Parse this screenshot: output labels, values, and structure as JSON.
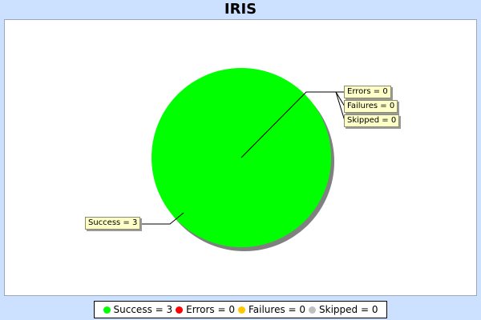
{
  "chart_data": {
    "type": "pie",
    "title": "IRIS",
    "slices": [
      {
        "label": "Success",
        "value": 3,
        "color": "#00ff00"
      },
      {
        "label": "Errors",
        "value": 0,
        "color": "#ff0000"
      },
      {
        "label": "Failures",
        "value": 0,
        "color": "#ffc800"
      },
      {
        "label": "Skipped",
        "value": 0,
        "color": "#c0c0c0"
      }
    ],
    "labels": {
      "success": "Success = 3",
      "errors": "Errors = 0",
      "failures": "Failures = 0",
      "skipped": "Skipped = 0"
    },
    "legend_position": "bottom"
  }
}
